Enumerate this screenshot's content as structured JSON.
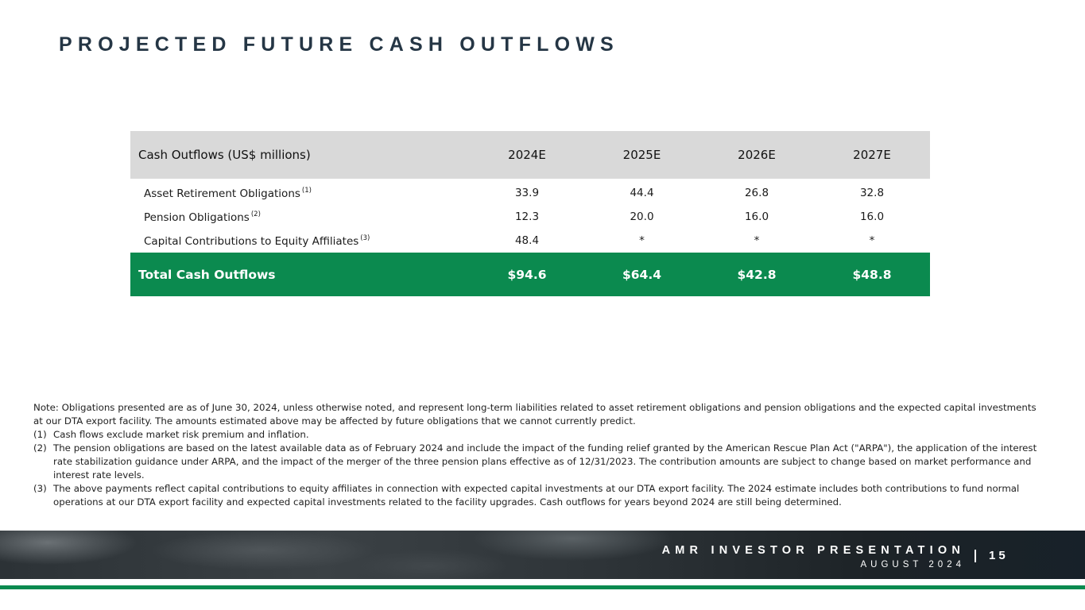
{
  "title": "PROJECTED FUTURE CASH OUTFLOWS",
  "table": {
    "header": [
      "Cash Outflows (US$ millions)",
      "2024E",
      "2025E",
      "2026E",
      "2027E"
    ],
    "rows": [
      {
        "label": "Asset Retirement Obligations",
        "sup": "(1)",
        "values": [
          "33.9",
          "44.4",
          "26.8",
          "32.8"
        ]
      },
      {
        "label": "Pension Obligations",
        "sup": "(2)",
        "values": [
          "12.3",
          "20.0",
          "16.0",
          "16.0"
        ]
      },
      {
        "label": "Capital Contributions to Equity Affiliates",
        "sup": "(3)",
        "values": [
          "48.4",
          "*",
          "*",
          "*"
        ]
      }
    ],
    "total": {
      "label": "Total Cash Outflows",
      "values": [
        "$94.6",
        "$64.4",
        "$42.8",
        "$48.8"
      ]
    }
  },
  "notes": {
    "intro": "Note: Obligations presented are as of June 30, 2024, unless otherwise noted, and represent long-term liabilities related to asset retirement obligations and pension obligations and the expected capital investments at our DTA export facility. The amounts estimated above may be affected by future obligations that we cannot currently predict.",
    "footnotes": [
      {
        "num": "(1)",
        "text": "Cash flows exclude market risk premium and inflation."
      },
      {
        "num": "(2)",
        "text": "The pension obligations are based on the latest available data as of February 2024 and include the impact of the funding relief granted by the American Rescue Plan Act (\"ARPA\"), the application of the interest rate stabilization guidance under ARPA, and the impact of the merger of the three pension plans effective as of 12/31/2023. The contribution amounts are subject to change based on market performance and interest rate levels."
      },
      {
        "num": "(3)",
        "text": "The above payments reflect capital contributions to equity affiliates in connection with expected capital investments at our DTA export facility. The 2024 estimate includes both contributions to fund normal operations at our DTA export facility and expected capital investments related to the facility upgrades. Cash outflows for years beyond 2024 are still being determined."
      }
    ]
  },
  "footer": {
    "line1": "AMR INVESTOR PRESENTATION",
    "line2": "AUGUST 2024",
    "page": "15"
  },
  "colors": {
    "title": "#253645",
    "header_bg": "#d9d9d9",
    "total_bg": "#0b8a4f",
    "accent_green": "#0b8a4f"
  }
}
